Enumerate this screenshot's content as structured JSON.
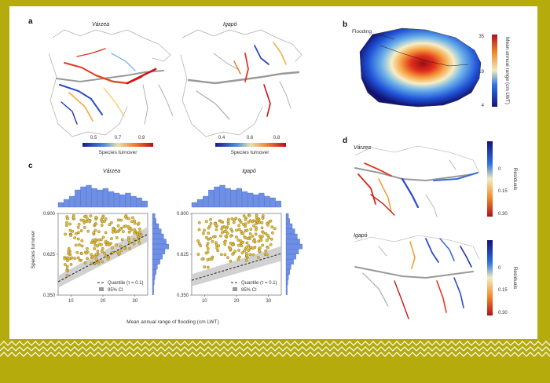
{
  "colors": {
    "background": "#b5ab0c",
    "card": "#ffffff",
    "point_fill": "#e3bf3c",
    "hist_fill": "#6d8fe6",
    "ci_band": "#c9c9c9"
  },
  "panels": {
    "a": {
      "label": "a",
      "varzea_title": "Várzea",
      "igapo_title": "Igapó",
      "varzea_ticks": [
        "0.5",
        "0.7",
        "0.9"
      ],
      "igapo_ticks": [
        "0.4",
        "0.6",
        "0.8"
      ],
      "legend_title": "Species turnover"
    },
    "b": {
      "label": "b",
      "flooding_label": "Flooding",
      "cbar_ticks": [
        "35",
        "19",
        "4"
      ],
      "cbar_title": "Mean annual range (cm LWT)"
    },
    "c": {
      "label": "c",
      "left_title": "Várzea",
      "right_title": "Igapó",
      "yaxis_label": "Species turnover",
      "xaxis_label": "Mean annual range of flooding (cm LWT)",
      "legend_quantile": "Quantile (τ = 0.1)",
      "legend_ci": "95% CI"
    },
    "d": {
      "label": "d",
      "top_title": "Várzea",
      "bottom_title": "Igapó",
      "cbar_ticks": [
        "0",
        "0.15",
        "0.30"
      ],
      "cbar_title": "Residuals"
    }
  },
  "chart_data": [
    {
      "type": "scatter",
      "title": "Várzea",
      "xlabel": "Mean annual range of flooding (cm LWT)",
      "ylabel": "Species turnover",
      "xlim": [
        6,
        34
      ],
      "ylim": [
        0.35,
        0.9
      ],
      "xticks": [
        "10",
        "20",
        "30"
      ],
      "yticks": [
        "0.900",
        "0.625",
        "0.350"
      ],
      "quantile_line": {
        "x": [
          6,
          34
        ],
        "y": [
          0.44,
          0.76
        ]
      },
      "grid": false
    },
    {
      "type": "scatter",
      "title": "Igapó",
      "xlabel": "Mean annual range of flooding (cm LWT)",
      "ylabel": "Species turnover",
      "xlim": [
        6,
        34
      ],
      "ylim": [
        0.35,
        0.9
      ],
      "xticks": [
        "10",
        "20",
        "30"
      ],
      "yticks": [
        "0.900",
        "0.625",
        "0.350"
      ],
      "quantile_line": {
        "x": [
          6,
          34
        ],
        "y": [
          0.45,
          0.63
        ]
      },
      "grid": false
    }
  ]
}
